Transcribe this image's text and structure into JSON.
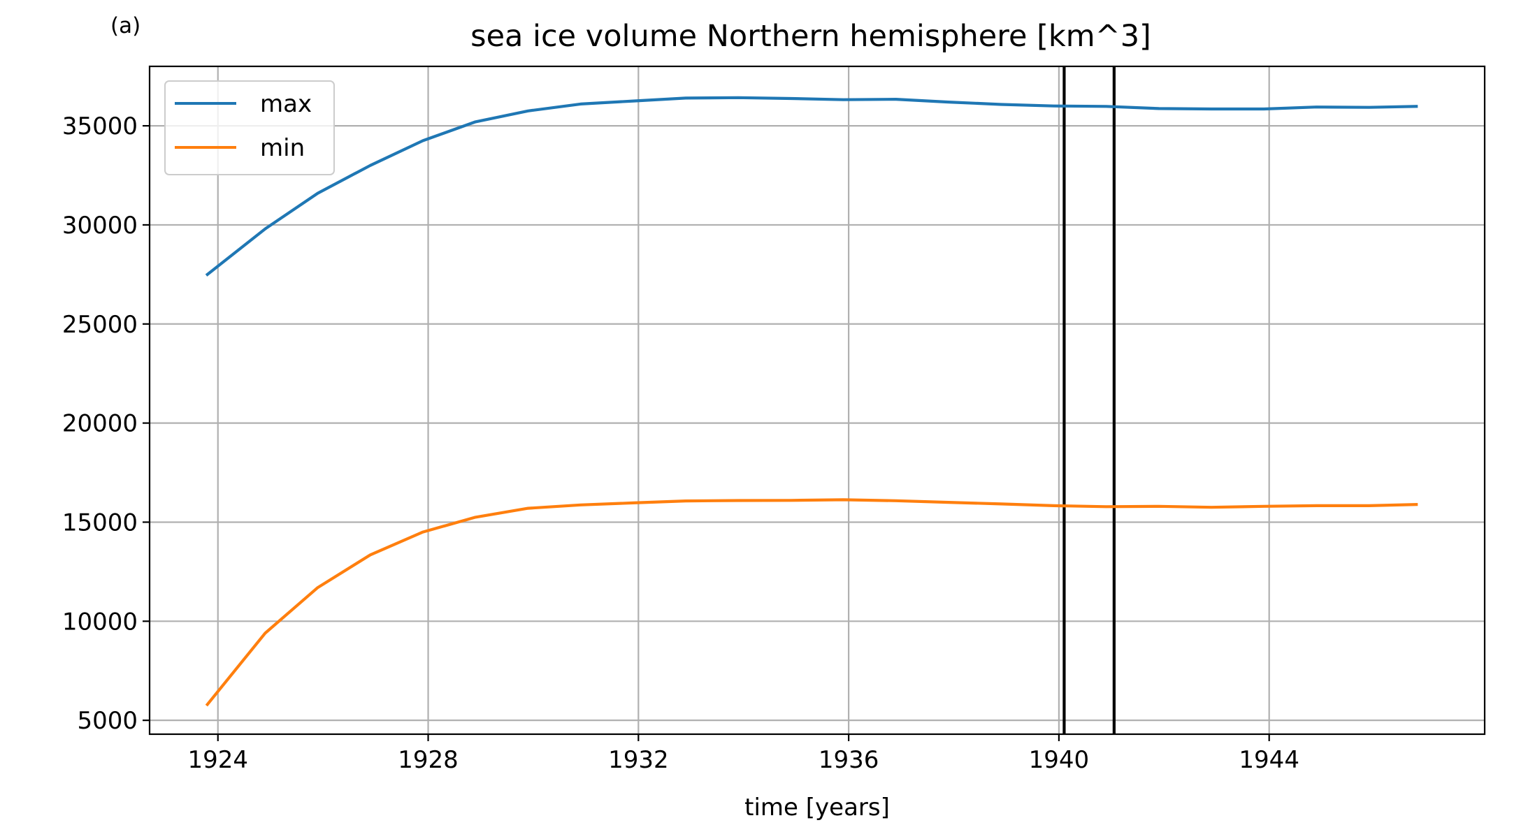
{
  "panel_label": "(a)",
  "chart_data": {
    "type": "line",
    "title": "sea ice volume Northern hemisphere [km^3]",
    "xlabel": "time [years]",
    "ylabel": "",
    "xlim": [
      1922.7,
      1948.1
    ],
    "ylim": [
      4300,
      38000
    ],
    "x_ticks": [
      1924,
      1928,
      1932,
      1936,
      1940,
      1944
    ],
    "y_ticks": [
      5000,
      10000,
      15000,
      20000,
      25000,
      30000,
      35000
    ],
    "grid": true,
    "legend_position": "top-left",
    "vertical_lines": [
      1940.1,
      1941.05
    ],
    "series": [
      {
        "name": "max",
        "color": "#1f77b4",
        "x": [
          1923.8,
          1924.9,
          1925.9,
          1926.9,
          1927.9,
          1928.9,
          1929.9,
          1930.9,
          1931.9,
          1932.9,
          1933.9,
          1934.9,
          1935.9,
          1936.9,
          1937.9,
          1938.9,
          1939.9,
          1940.9,
          1941.9,
          1942.9,
          1943.9,
          1944.9,
          1945.9,
          1946.8
        ],
        "values": [
          27500,
          29800,
          31600,
          33000,
          34250,
          35200,
          35750,
          36100,
          36250,
          36400,
          36420,
          36380,
          36320,
          36340,
          36200,
          36080,
          36000,
          35980,
          35870,
          35850,
          35850,
          35950,
          35930,
          35980
        ]
      },
      {
        "name": "min",
        "color": "#ff7f0e",
        "x": [
          1923.8,
          1924.9,
          1925.9,
          1926.9,
          1927.9,
          1928.9,
          1929.9,
          1930.9,
          1931.9,
          1932.9,
          1933.9,
          1934.9,
          1935.9,
          1936.9,
          1937.9,
          1938.9,
          1939.9,
          1940.9,
          1941.9,
          1942.9,
          1943.9,
          1944.9,
          1945.9,
          1946.8
        ],
        "values": [
          5800,
          9400,
          11700,
          13350,
          14500,
          15250,
          15700,
          15870,
          15970,
          16070,
          16090,
          16100,
          16130,
          16080,
          16000,
          15920,
          15830,
          15780,
          15800,
          15750,
          15800,
          15830,
          15830,
          15890
        ]
      }
    ]
  }
}
